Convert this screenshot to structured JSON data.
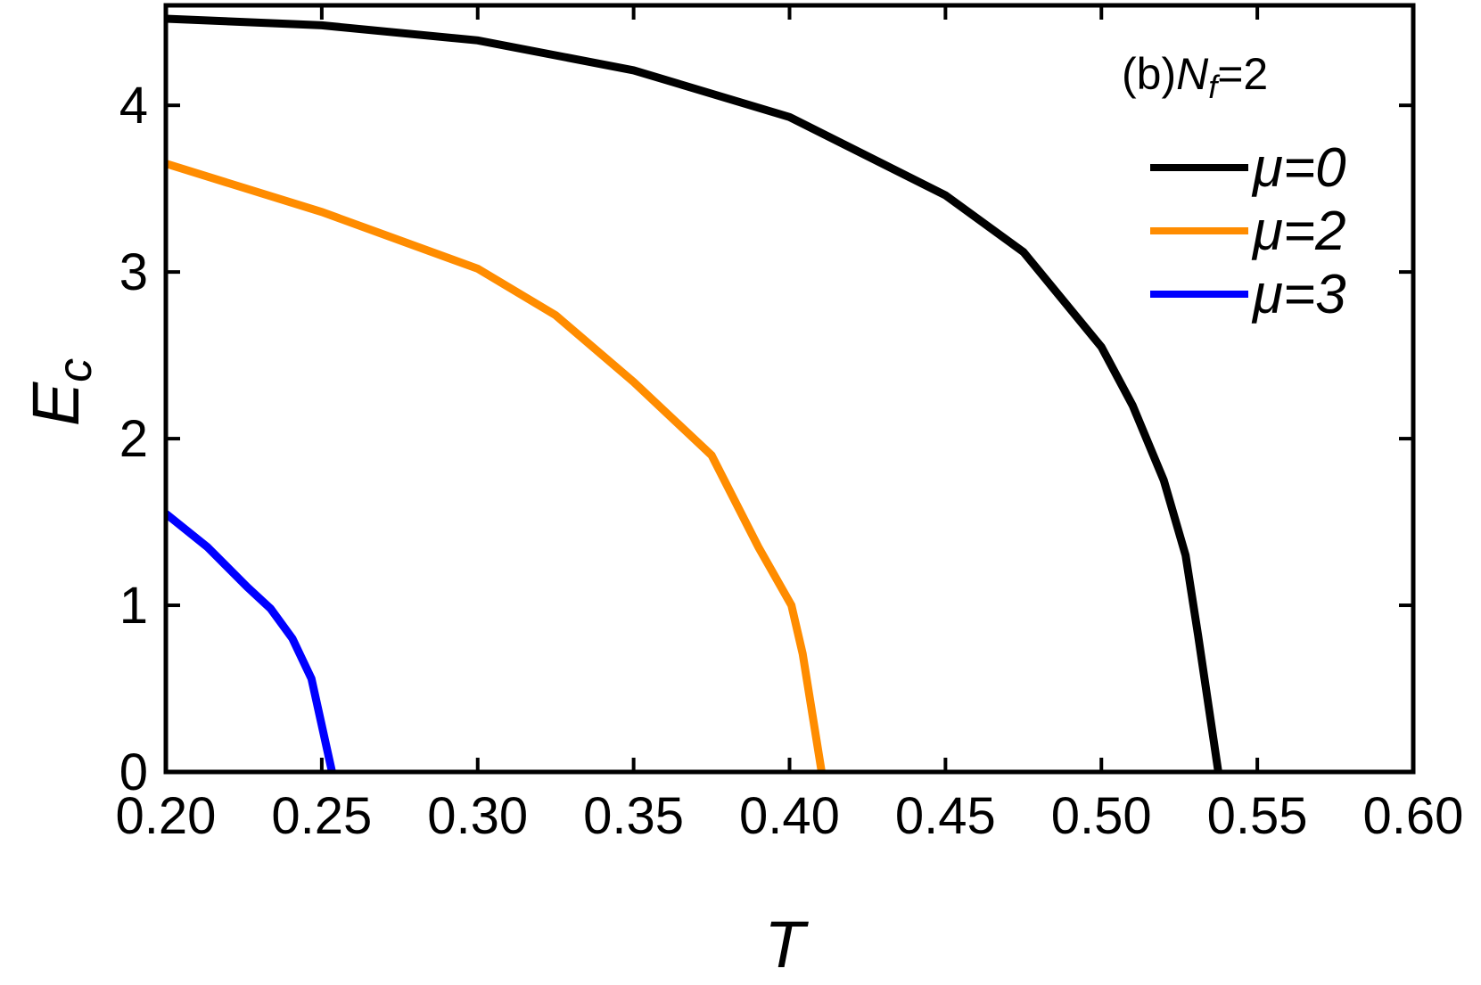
{
  "chart_data": {
    "type": "line",
    "x_label": "T",
    "y_label": {
      "symbol": "E",
      "subscript": "c"
    },
    "annotation": {
      "prefix": "(b)",
      "symbol": "N",
      "subscript": "f",
      "suffix": "=2"
    },
    "xlim": [
      0.2,
      0.6
    ],
    "ylim": [
      0,
      4.6
    ],
    "xticks": [
      {
        "value": 0.2,
        "label": "0.20"
      },
      {
        "value": 0.25,
        "label": "0.25"
      },
      {
        "value": 0.3,
        "label": "0.30"
      },
      {
        "value": 0.35,
        "label": "0.35"
      },
      {
        "value": 0.4,
        "label": "0.40"
      },
      {
        "value": 0.45,
        "label": "0.45"
      },
      {
        "value": 0.5,
        "label": "0.50"
      },
      {
        "value": 0.55,
        "label": "0.55"
      },
      {
        "value": 0.6,
        "label": "0.60"
      }
    ],
    "yticks": [
      0,
      1,
      2,
      3,
      4
    ],
    "legend": "top-right",
    "series": [
      {
        "name": "μ=0",
        "color": "#000000",
        "x": [
          0.2,
          0.25,
          0.3,
          0.35,
          0.4,
          0.45,
          0.475,
          0.5,
          0.51,
          0.52,
          0.527,
          0.531,
          0.5375
        ],
        "values": [
          4.52,
          4.48,
          4.39,
          4.21,
          3.93,
          3.46,
          3.12,
          2.55,
          2.2,
          1.75,
          1.3,
          0.82,
          0
        ]
      },
      {
        "name": "μ=2",
        "color": "#ff8c00",
        "x": [
          0.2,
          0.25,
          0.3,
          0.325,
          0.35,
          0.375,
          0.39,
          0.4006,
          0.4042,
          0.4103
        ],
        "values": [
          3.65,
          3.36,
          3.02,
          2.74,
          2.34,
          1.9,
          1.35,
          1.0,
          0.71,
          0
        ]
      },
      {
        "name": "μ=3",
        "color": "#0000ff",
        "x": [
          0.2,
          0.2133,
          0.2261,
          0.2336,
          0.2406,
          0.2467,
          0.2533
        ],
        "values": [
          1.55,
          1.35,
          1.11,
          0.98,
          0.8,
          0.56,
          0
        ]
      }
    ]
  }
}
